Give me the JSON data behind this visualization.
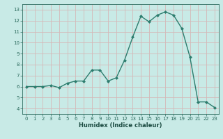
{
  "x": [
    0,
    1,
    2,
    3,
    4,
    5,
    6,
    7,
    8,
    9,
    10,
    11,
    12,
    13,
    14,
    15,
    16,
    17,
    18,
    19,
    20,
    21,
    22,
    23
  ],
  "y": [
    6.0,
    6.0,
    6.0,
    6.1,
    5.9,
    6.3,
    6.5,
    6.5,
    7.5,
    7.5,
    6.5,
    6.8,
    8.4,
    10.5,
    12.4,
    11.9,
    12.5,
    12.8,
    12.5,
    11.3,
    8.7,
    4.6,
    4.6,
    4.1
  ],
  "line_color": "#2d7d6e",
  "marker": "D",
  "marker_size": 2.0,
  "bg_color": "#c8eae6",
  "grid_color": "#d4b8b8",
  "xlabel": "Humidex (Indice chaleur)",
  "xlim": [
    -0.5,
    23.5
  ],
  "ylim": [
    3.5,
    13.5
  ],
  "yticks": [
    4,
    5,
    6,
    7,
    8,
    9,
    10,
    11,
    12,
    13
  ],
  "xticks": [
    0,
    1,
    2,
    3,
    4,
    5,
    6,
    7,
    8,
    9,
    10,
    11,
    12,
    13,
    14,
    15,
    16,
    17,
    18,
    19,
    20,
    21,
    22,
    23
  ],
  "tick_color": "#2d6b5e",
  "label_color": "#1a4a40",
  "tick_fontsize": 5.0,
  "xlabel_fontsize": 6.0
}
